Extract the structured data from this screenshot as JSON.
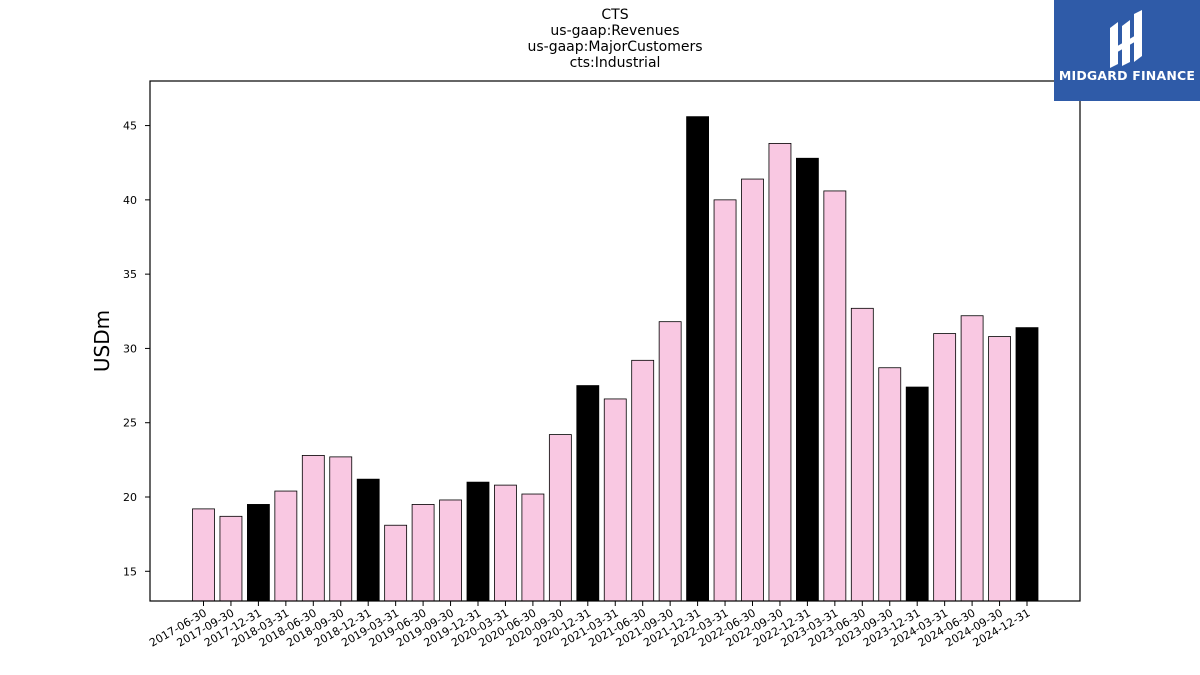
{
  "chart_data": {
    "type": "bar",
    "title_lines": [
      "CTS",
      "us-gaap:Revenues",
      "us-gaap:MajorCustomers",
      "cts:Industrial"
    ],
    "xlabel": "",
    "ylabel": "USDm",
    "ylim": [
      13,
      48
    ],
    "yticks": [
      15,
      20,
      25,
      30,
      35,
      40,
      45
    ],
    "grid": false,
    "categories": [
      "2017-06-30",
      "2017-09-30",
      "2017-12-31",
      "2018-03-31",
      "2018-06-30",
      "2018-09-30",
      "2018-12-31",
      "2019-03-31",
      "2019-06-30",
      "2019-09-30",
      "2019-12-31",
      "2020-03-31",
      "2020-06-30",
      "2020-09-30",
      "2020-12-31",
      "2021-03-31",
      "2021-06-30",
      "2021-09-30",
      "2021-12-31",
      "2022-03-31",
      "2022-06-30",
      "2022-09-30",
      "2022-12-31",
      "2023-03-31",
      "2023-06-30",
      "2023-09-30",
      "2023-12-31",
      "2024-03-31",
      "2024-06-30",
      "2024-09-30",
      "2024-12-31"
    ],
    "values": [
      19.2,
      18.7,
      19.5,
      20.4,
      22.8,
      22.7,
      21.2,
      18.1,
      19.5,
      19.8,
      21.0,
      20.8,
      20.2,
      24.2,
      27.5,
      26.6,
      29.2,
      31.8,
      45.6,
      40.0,
      41.4,
      43.8,
      42.8,
      40.6,
      32.7,
      28.7,
      27.4,
      31.0,
      32.2,
      30.8,
      31.4
    ],
    "colors": {
      "quarter": "#f9c8e2",
      "year_end": "#000000",
      "edge": "#000000"
    }
  },
  "logo": {
    "text": "MIDGARD FINANCE",
    "background": "#2f5ba8"
  }
}
